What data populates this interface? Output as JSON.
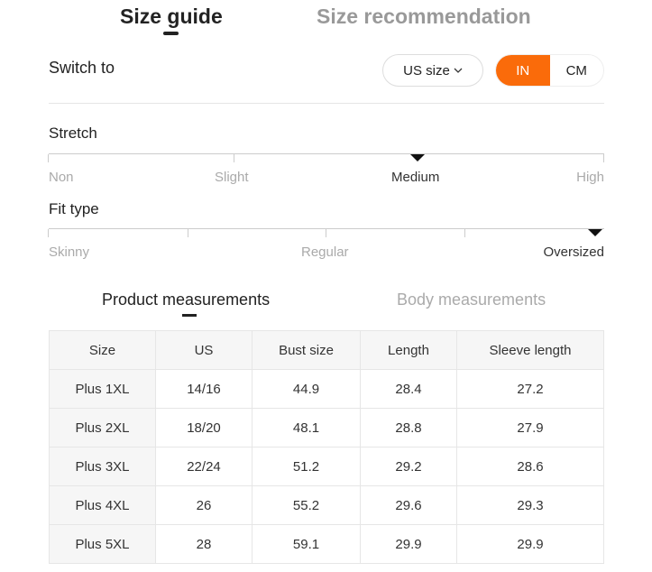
{
  "tabs": [
    {
      "label": "Size guide",
      "active": true
    },
    {
      "label": "Size recommendation",
      "active": false
    }
  ],
  "switch": {
    "label": "Switch to",
    "size_select": "US size",
    "units": [
      "IN",
      "CM"
    ],
    "selected_unit": "IN",
    "accent": "#fa6b0a"
  },
  "stretch": {
    "label": "Stretch",
    "options": [
      "Non",
      "Slight",
      "Medium",
      "High"
    ],
    "selected": "Medium"
  },
  "fit": {
    "label": "Fit type",
    "options": [
      "Skinny",
      "Regular",
      "Oversized"
    ],
    "selected": "Oversized"
  },
  "measure_tabs": [
    {
      "label": "Product measurements",
      "active": true
    },
    {
      "label": "Body measurements",
      "active": false
    }
  ],
  "table": {
    "headers": [
      "Size",
      "US",
      "Bust size",
      "Length",
      "Sleeve length"
    ],
    "rows": [
      [
        "Plus 1XL",
        "14/16",
        "44.9",
        "28.4",
        "27.2"
      ],
      [
        "Plus 2XL",
        "18/20",
        "48.1",
        "28.8",
        "27.9"
      ],
      [
        "Plus 3XL",
        "22/24",
        "51.2",
        "29.2",
        "28.6"
      ],
      [
        "Plus 4XL",
        "26",
        "55.2",
        "29.6",
        "29.3"
      ],
      [
        "Plus 5XL",
        "28",
        "59.1",
        "29.9",
        "29.9"
      ]
    ]
  }
}
